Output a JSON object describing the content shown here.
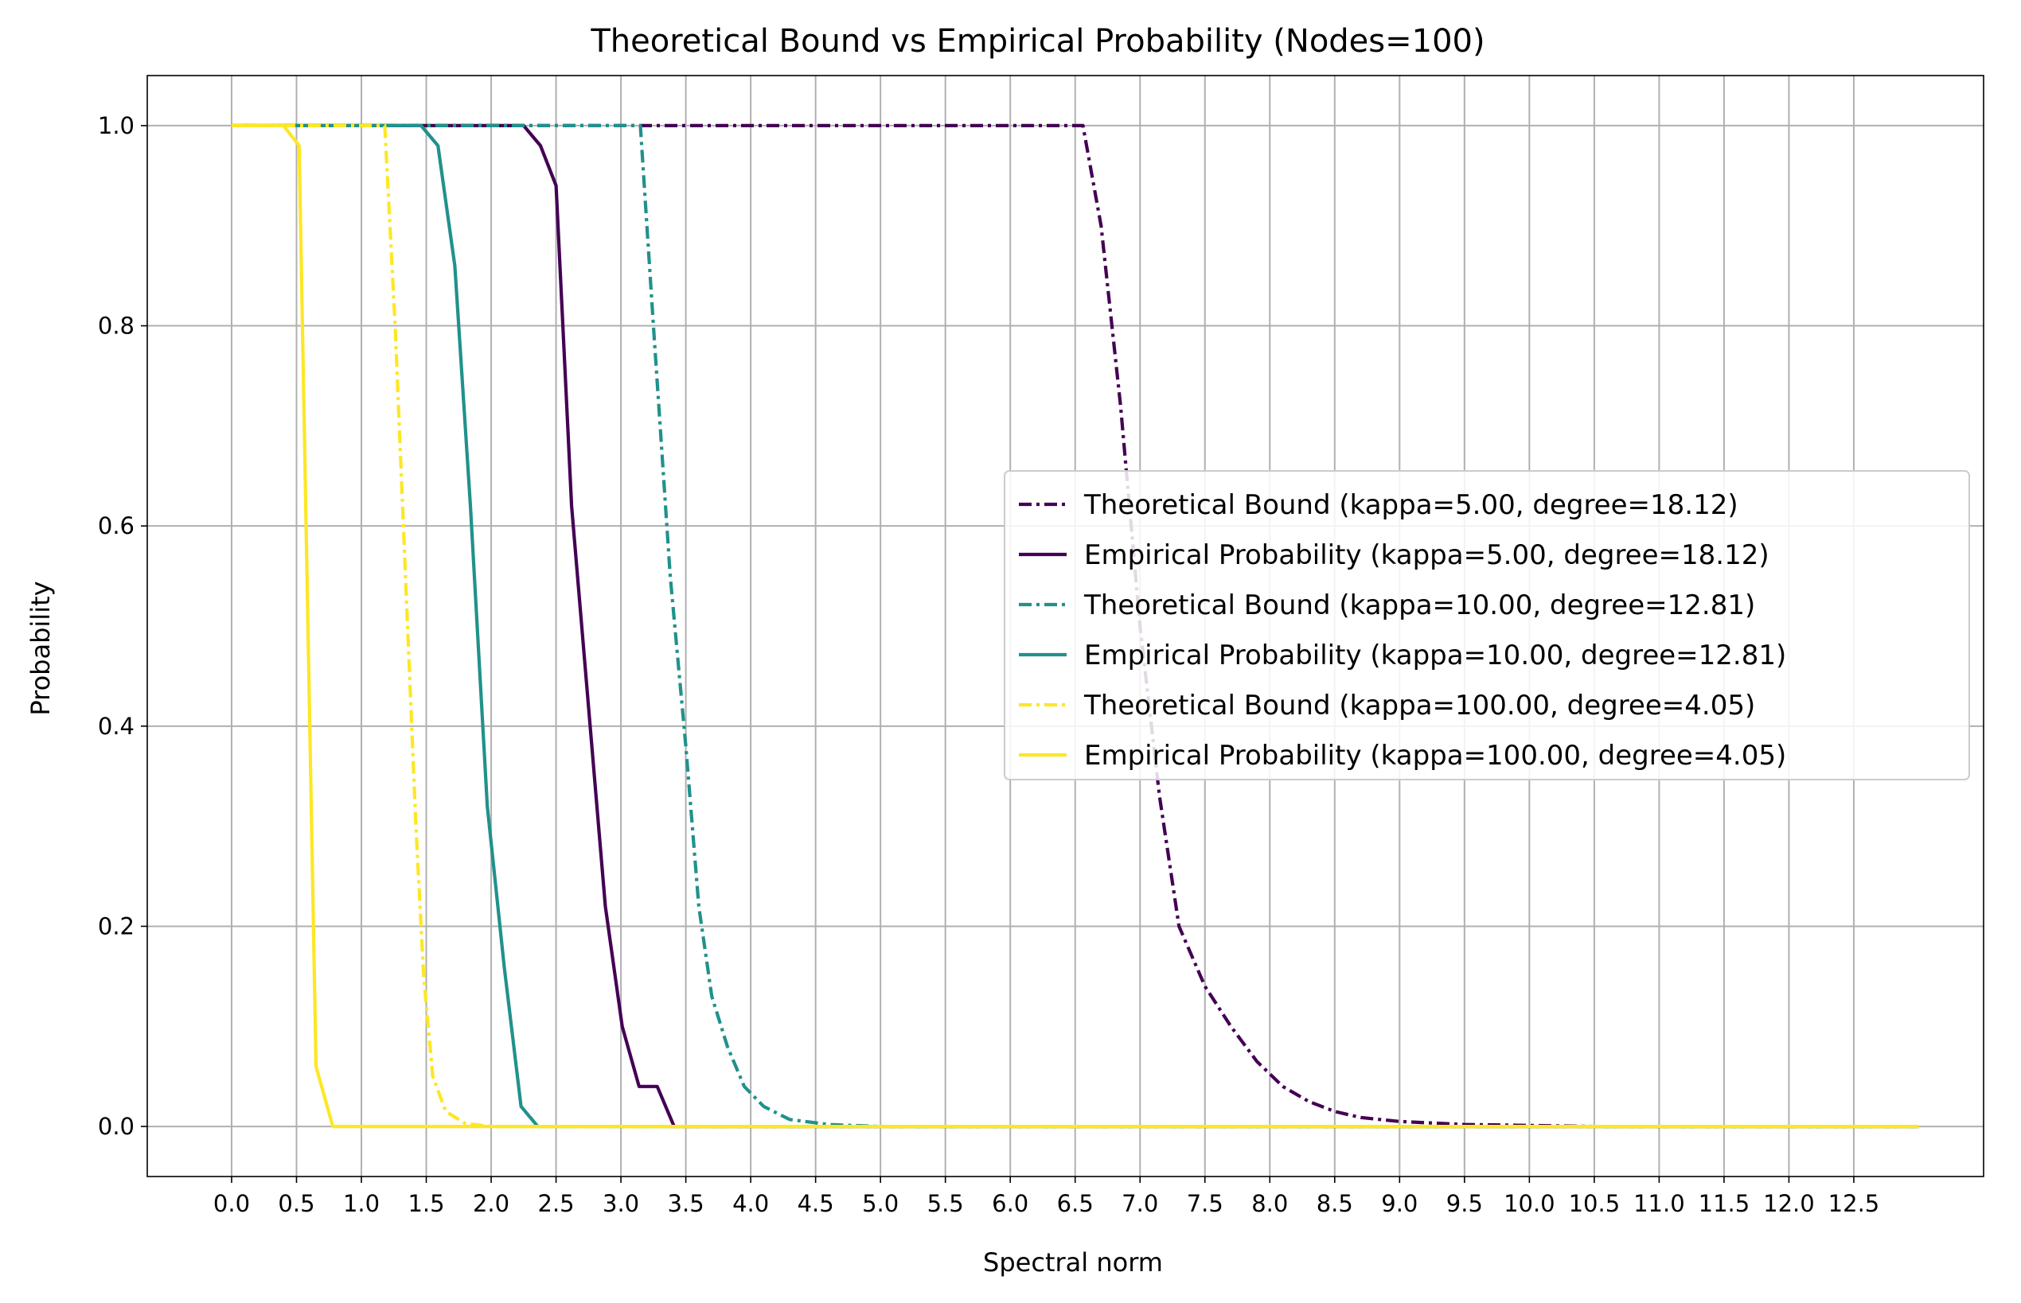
{
  "chart_data": {
    "type": "line",
    "title": "Theoretical Bound vs Empirical Probability (Nodes=100)",
    "xlabel": "Spectral norm",
    "ylabel": "Probability",
    "xlim": [
      -0.65,
      13.5
    ],
    "ylim": [
      -0.05,
      1.05
    ],
    "xticks": [
      "0.0",
      "0.5",
      "1.0",
      "1.5",
      "2.0",
      "2.5",
      "3.0",
      "3.5",
      "4.0",
      "4.5",
      "5.0",
      "5.5",
      "6.0",
      "6.5",
      "7.0",
      "7.5",
      "8.0",
      "8.5",
      "9.0",
      "9.5",
      "10.0",
      "10.5",
      "11.0",
      "11.5",
      "12.0",
      "12.5"
    ],
    "yticks": [
      "0.0",
      "0.2",
      "0.4",
      "0.6",
      "0.8",
      "1.0"
    ],
    "grid": true,
    "legend_position": "center-right",
    "series": [
      {
        "name": "Theoretical Bound (kappa=5.00, degree=18.12)",
        "color": "#440154",
        "style": "dashdot",
        "points": [
          [
            0,
            1
          ],
          [
            6.56,
            1
          ],
          [
            6.7,
            0.9
          ],
          [
            6.85,
            0.72
          ],
          [
            7.0,
            0.5
          ],
          [
            7.15,
            0.33
          ],
          [
            7.3,
            0.2
          ],
          [
            7.5,
            0.14
          ],
          [
            7.7,
            0.1
          ],
          [
            7.9,
            0.065
          ],
          [
            8.1,
            0.04
          ],
          [
            8.3,
            0.025
          ],
          [
            8.5,
            0.015
          ],
          [
            8.7,
            0.009
          ],
          [
            9.0,
            0.005
          ],
          [
            9.5,
            0.002
          ],
          [
            10.0,
            0.001
          ],
          [
            10.5,
            0
          ],
          [
            13,
            0
          ]
        ]
      },
      {
        "name": "Empirical Probability (kappa=5.00, degree=18.12)",
        "color": "#440154",
        "style": "solid",
        "points": [
          [
            0,
            1
          ],
          [
            2.25,
            1
          ],
          [
            2.38,
            0.98
          ],
          [
            2.5,
            0.94
          ],
          [
            2.62,
            0.62
          ],
          [
            2.75,
            0.42
          ],
          [
            2.88,
            0.22
          ],
          [
            3.01,
            0.1
          ],
          [
            3.14,
            0.04
          ],
          [
            3.28,
            0.04
          ],
          [
            3.41,
            0
          ],
          [
            13,
            0
          ]
        ]
      },
      {
        "name": "Theoretical Bound (kappa=10.00, degree=12.81)",
        "color": "#21918c",
        "style": "dashdot",
        "points": [
          [
            0,
            1
          ],
          [
            3.15,
            1
          ],
          [
            3.25,
            0.8
          ],
          [
            3.38,
            0.55
          ],
          [
            3.5,
            0.38
          ],
          [
            3.6,
            0.22
          ],
          [
            3.7,
            0.13
          ],
          [
            3.82,
            0.08
          ],
          [
            3.95,
            0.04
          ],
          [
            4.1,
            0.02
          ],
          [
            4.3,
            0.007
          ],
          [
            4.6,
            0.002
          ],
          [
            5.0,
            0
          ],
          [
            13,
            0
          ]
        ]
      },
      {
        "name": "Empirical Probability (kappa=10.00, degree=12.81)",
        "color": "#21918c",
        "style": "solid",
        "points": [
          [
            0,
            1
          ],
          [
            1.46,
            1
          ],
          [
            1.59,
            0.98
          ],
          [
            1.72,
            0.86
          ],
          [
            1.84,
            0.62
          ],
          [
            1.97,
            0.32
          ],
          [
            2.1,
            0.16
          ],
          [
            2.23,
            0.02
          ],
          [
            2.36,
            0
          ],
          [
            13,
            0
          ]
        ]
      },
      {
        "name": "Theoretical Bound (kappa=100.00, degree=4.05)",
        "color": "#fde725",
        "style": "dashdot",
        "points": [
          [
            0,
            1
          ],
          [
            1.18,
            1
          ],
          [
            1.26,
            0.8
          ],
          [
            1.34,
            0.55
          ],
          [
            1.42,
            0.3
          ],
          [
            1.48,
            0.15
          ],
          [
            1.55,
            0.05
          ],
          [
            1.65,
            0.015
          ],
          [
            1.8,
            0.003
          ],
          [
            2.0,
            0
          ],
          [
            13,
            0
          ]
        ]
      },
      {
        "name": "Empirical Probability (kappa=100.00, degree=4.05)",
        "color": "#fde725",
        "style": "solid",
        "points": [
          [
            0,
            1
          ],
          [
            0.4,
            1
          ],
          [
            0.52,
            0.98
          ],
          [
            0.65,
            0.06
          ],
          [
            0.78,
            0
          ],
          [
            13,
            0
          ]
        ]
      }
    ]
  }
}
